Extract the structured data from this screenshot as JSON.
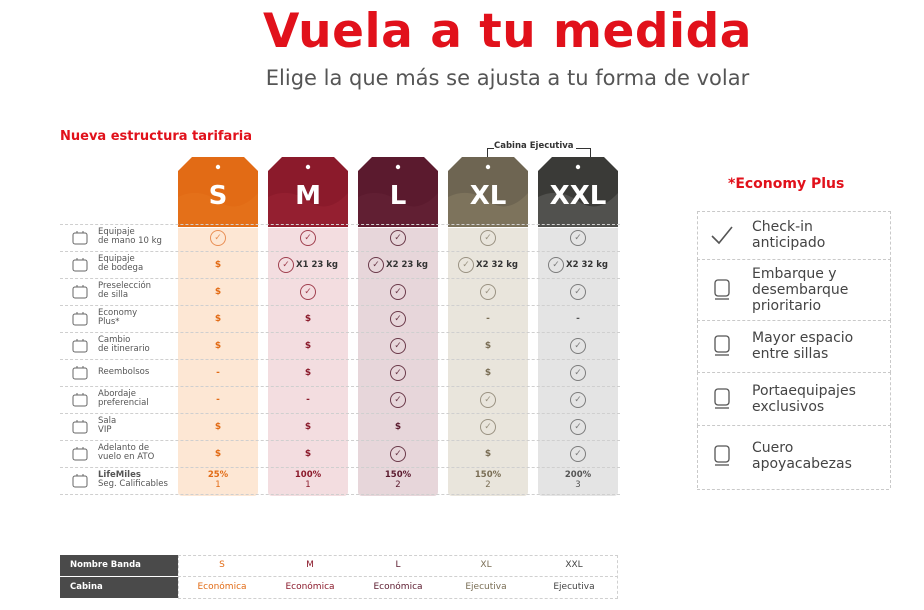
{
  "header": {
    "title": "Vuela a tu medida",
    "subtitle": "Elige la que más se ajusta a tu forma de volar"
  },
  "section_title": "Nueva estructura tarifaria",
  "cabin_group_label": "Cabina Ejecutiva",
  "fares": [
    {
      "name": "S",
      "color": "#e26b15"
    },
    {
      "name": "M",
      "color": "#8b1a2b"
    },
    {
      "name": "L",
      "color": "#5b1a2e"
    },
    {
      "name": "XL",
      "color": "#6e6552"
    },
    {
      "name": "XXL",
      "color": "#3a3a37"
    }
  ],
  "rows": [
    {
      "label_1": "Equipaje",
      "label_2": "de mano 10 kg",
      "icon": "carry-on-bag-icon",
      "cells": [
        {
          "t": "check"
        },
        {
          "t": "check"
        },
        {
          "t": "check"
        },
        {
          "t": "check"
        },
        {
          "t": "check"
        }
      ]
    },
    {
      "label_1": "Equipaje",
      "label_2": "de bodega",
      "icon": "checked-luggage-icon",
      "cells": [
        {
          "t": "dollar"
        },
        {
          "t": "check",
          "text": "X1 23 kg"
        },
        {
          "t": "check",
          "text": "X2 23 kg"
        },
        {
          "t": "check",
          "text": "X2 32 kg"
        },
        {
          "t": "check",
          "text": "X2 32 kg"
        }
      ]
    },
    {
      "label_1": "Preselección",
      "label_2": "de silla",
      "icon": "seat-icon",
      "cells": [
        {
          "t": "dollar"
        },
        {
          "t": "check"
        },
        {
          "t": "check"
        },
        {
          "t": "check"
        },
        {
          "t": "check"
        }
      ]
    },
    {
      "label_1": "Economy",
      "label_2": "Plus*",
      "icon": "economy-plus-seat-icon",
      "cells": [
        {
          "t": "dollar"
        },
        {
          "t": "dollar"
        },
        {
          "t": "check"
        },
        {
          "t": "dash"
        },
        {
          "t": "dash"
        }
      ]
    },
    {
      "label_1": "Cambio",
      "label_2": "de itinerario",
      "icon": "calendar-icon",
      "cells": [
        {
          "t": "dollar"
        },
        {
          "t": "dollar"
        },
        {
          "t": "check"
        },
        {
          "t": "dollar"
        },
        {
          "t": "check"
        }
      ]
    },
    {
      "label_1": "Reembolsos",
      "label_2": "",
      "icon": "refund-icon",
      "cells": [
        {
          "t": "dash"
        },
        {
          "t": "dollar"
        },
        {
          "t": "check"
        },
        {
          "t": "dollar"
        },
        {
          "t": "check"
        }
      ]
    },
    {
      "label_1": "Abordaje",
      "label_2": "preferencial",
      "icon": "priority-boarding-icon",
      "cells": [
        {
          "t": "dash"
        },
        {
          "t": "dash"
        },
        {
          "t": "check"
        },
        {
          "t": "check"
        },
        {
          "t": "check"
        }
      ]
    },
    {
      "label_1": "Sala",
      "label_2": "VIP",
      "icon": "vip-lounge-icon",
      "cells": [
        {
          "t": "dollar"
        },
        {
          "t": "dollar"
        },
        {
          "t": "dollar"
        },
        {
          "t": "check"
        },
        {
          "t": "check"
        }
      ]
    },
    {
      "label_1": "Adelanto de",
      "label_2": "vuelo en ATO",
      "icon": "flight-advance-icon",
      "cells": [
        {
          "t": "dollar"
        },
        {
          "t": "dollar"
        },
        {
          "t": "check"
        },
        {
          "t": "dollar"
        },
        {
          "t": "check"
        }
      ]
    }
  ],
  "lifemiles_row": {
    "label_1": "LifeMiles",
    "label_2": "Seg. Calificables",
    "icon": "lifemiles-card-icon",
    "values": [
      {
        "pct": "25%",
        "seg": "1"
      },
      {
        "pct": "100%",
        "seg": "1"
      },
      {
        "pct": "150%",
        "seg": "2"
      },
      {
        "pct": "150%",
        "seg": "2"
      },
      {
        "pct": "200%",
        "seg": "3"
      }
    ]
  },
  "symbols": {
    "check": "✓",
    "dollar": "$",
    "dash": "-"
  },
  "economy_plus": {
    "title": "*Economy Plus",
    "items": [
      {
        "line_1": "Check-in",
        "line_2": "anticipado",
        "line_3": "",
        "icon": "checkmark-icon"
      },
      {
        "line_1": "Embarque y",
        "line_2": "desembarque",
        "line_3": "prioritario",
        "icon": "priority-boarding-icon"
      },
      {
        "line_1": "Mayor espacio",
        "line_2": "entre sillas",
        "line_3": "",
        "icon": "legroom-seat-icon"
      },
      {
        "line_1": "Portaequipajes",
        "line_2": "exclusivos",
        "line_3": "",
        "icon": "overhead-bin-icon"
      },
      {
        "line_1": "Cuero",
        "line_2": "apoyacabezas",
        "line_3": "",
        "icon": "headrest-seat-icon"
      }
    ]
  },
  "bands_table": {
    "head_1": "Nombre Banda",
    "head_2": "Cabina",
    "bands": [
      "S",
      "M",
      "L",
      "XL",
      "XXL"
    ],
    "cabins": [
      "Económica",
      "Económica",
      "Económica",
      "Ejecutiva",
      "Ejecutiva"
    ]
  }
}
